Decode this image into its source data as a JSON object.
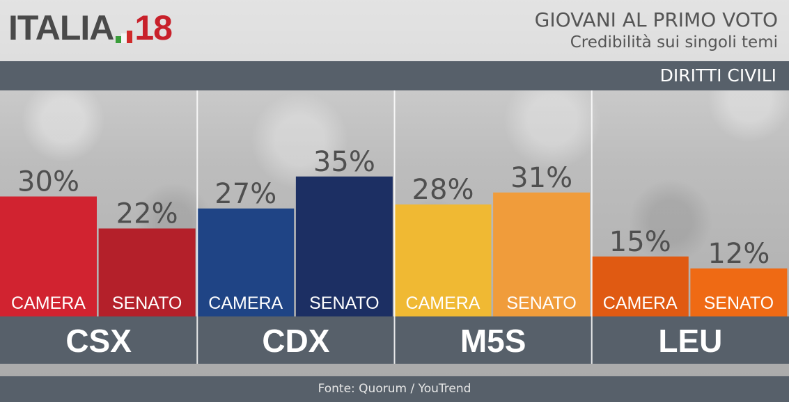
{
  "logo": {
    "word": "ITALIA",
    "number": "18"
  },
  "header": {
    "title": "GIOVANI AL PRIMO VOTO",
    "subtitle": "Credibilità sui singoli temi"
  },
  "topic": "DIRITTI CIVILI",
  "footer": {
    "source": "Fonte: Quorum / YouTrend"
  },
  "colors": {
    "CSX": [
      "#d12330",
      "#b4202a"
    ],
    "CDX": [
      "#1f4485",
      "#1c2f63"
    ],
    "M5S": [
      "#f0b933",
      "#f09c3b"
    ],
    "LEU": [
      "#e05a12",
      "#ef6a14"
    ]
  },
  "chart_data": {
    "type": "bar",
    "categories": [
      "CSX",
      "CDX",
      "M5S",
      "LEU"
    ],
    "series": [
      {
        "name": "CAMERA",
        "values": [
          30,
          27,
          28,
          15
        ]
      },
      {
        "name": "SENATO",
        "values": [
          22,
          35,
          31,
          12
        ]
      }
    ],
    "value_suffix": "%",
    "ylim": [
      0,
      40
    ],
    "grid": false
  }
}
